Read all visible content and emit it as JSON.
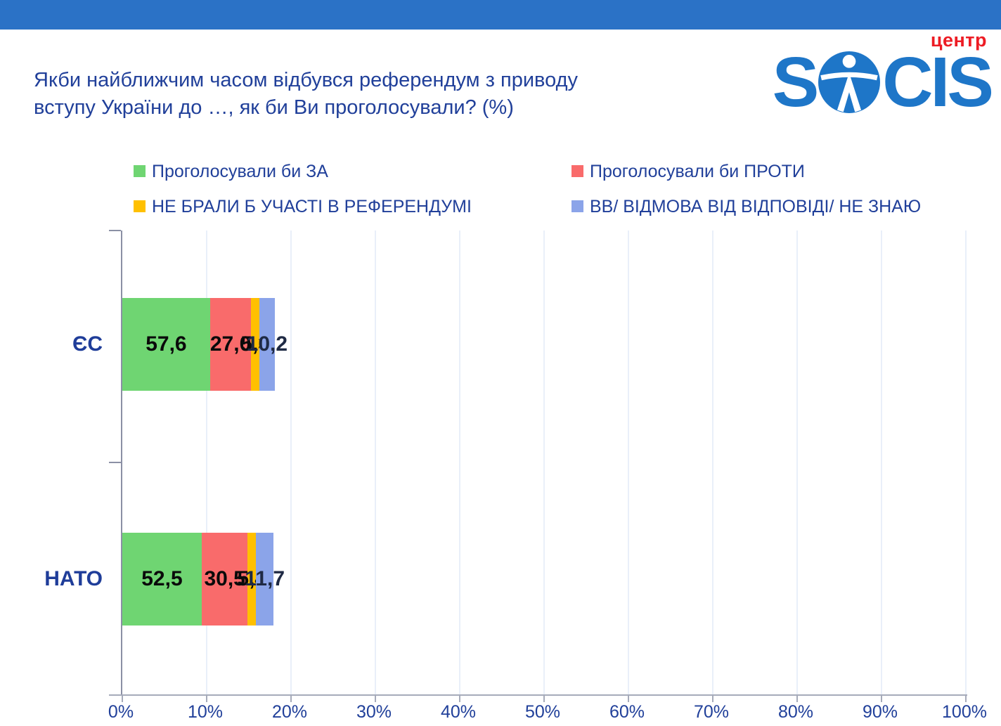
{
  "header": {
    "band_color": "#2b72c6"
  },
  "title": {
    "line1": "Якби найближчим часом відбувся референдум з приводу",
    "line2": "вступу України до …, як би Ви проголосували? (%)"
  },
  "logo": {
    "s": "S",
    "cis": "CIS",
    "sup": "центр",
    "color": "#1e76c8",
    "sup_color": "#ed1c24"
  },
  "legend": {
    "items": [
      {
        "label": "Проголосували би ЗА",
        "color": "#6fd572"
      },
      {
        "label": "Проголосували би ПРОТИ",
        "color": "#f96b6b"
      },
      {
        "label": "НЕ БРАЛИ Б УЧАСТІ В РЕФЕРЕНДУМІ",
        "color": "#ffc000"
      },
      {
        "label": "ВВ/ ВІДМОВА ВІД ВІДПОВІДІ/ НЕ ЗНАЮ",
        "color": "#8ba4e9"
      }
    ]
  },
  "chart_data": {
    "type": "bar",
    "orientation": "horizontal",
    "stacked": true,
    "title": "Якби найближчим часом відбувся референдум з приводу вступу України до …, як би Ви проголосували? (%)",
    "categories": [
      "ЄС",
      "НАТО"
    ],
    "series": [
      {
        "name": "Проголосували би ЗА",
        "color": "#6fd572",
        "label_color": "#0a0a0a",
        "values": [
          57.6,
          52.5
        ]
      },
      {
        "name": "Проголосували би ПРОТИ",
        "color": "#f96b6b",
        "label_color": "#0a0a0a",
        "values": [
          27.0,
          30.5
        ]
      },
      {
        "name": "НЕ БРАЛИ Б УЧАСТІ В РЕФЕРЕНДУМІ",
        "color": "#ffc000",
        "label_color": "#0a0a0a",
        "values": [
          5.3,
          5.4
        ]
      },
      {
        "name": "ВВ/ ВІДМОВА ВІД ВІДПОВІДІ/ НЕ ЗНАЮ",
        "color": "#8ba4e9",
        "label_color": "#1f2a44",
        "values": [
          10.2,
          11.7
        ]
      }
    ],
    "value_labels": [
      [
        "57,6",
        "27,0",
        "5,3",
        "10,2"
      ],
      [
        "52,5",
        "30,5",
        "5,4",
        "11,7"
      ]
    ],
    "x_ticks": [
      "0%",
      "10%",
      "20%",
      "30%",
      "40%",
      "50%",
      "60%",
      "70%",
      "80%",
      "90%",
      "100%"
    ],
    "xlim": [
      0,
      100
    ],
    "xlabel": "",
    "ylabel": "",
    "grid": true,
    "legend_position": "top"
  }
}
